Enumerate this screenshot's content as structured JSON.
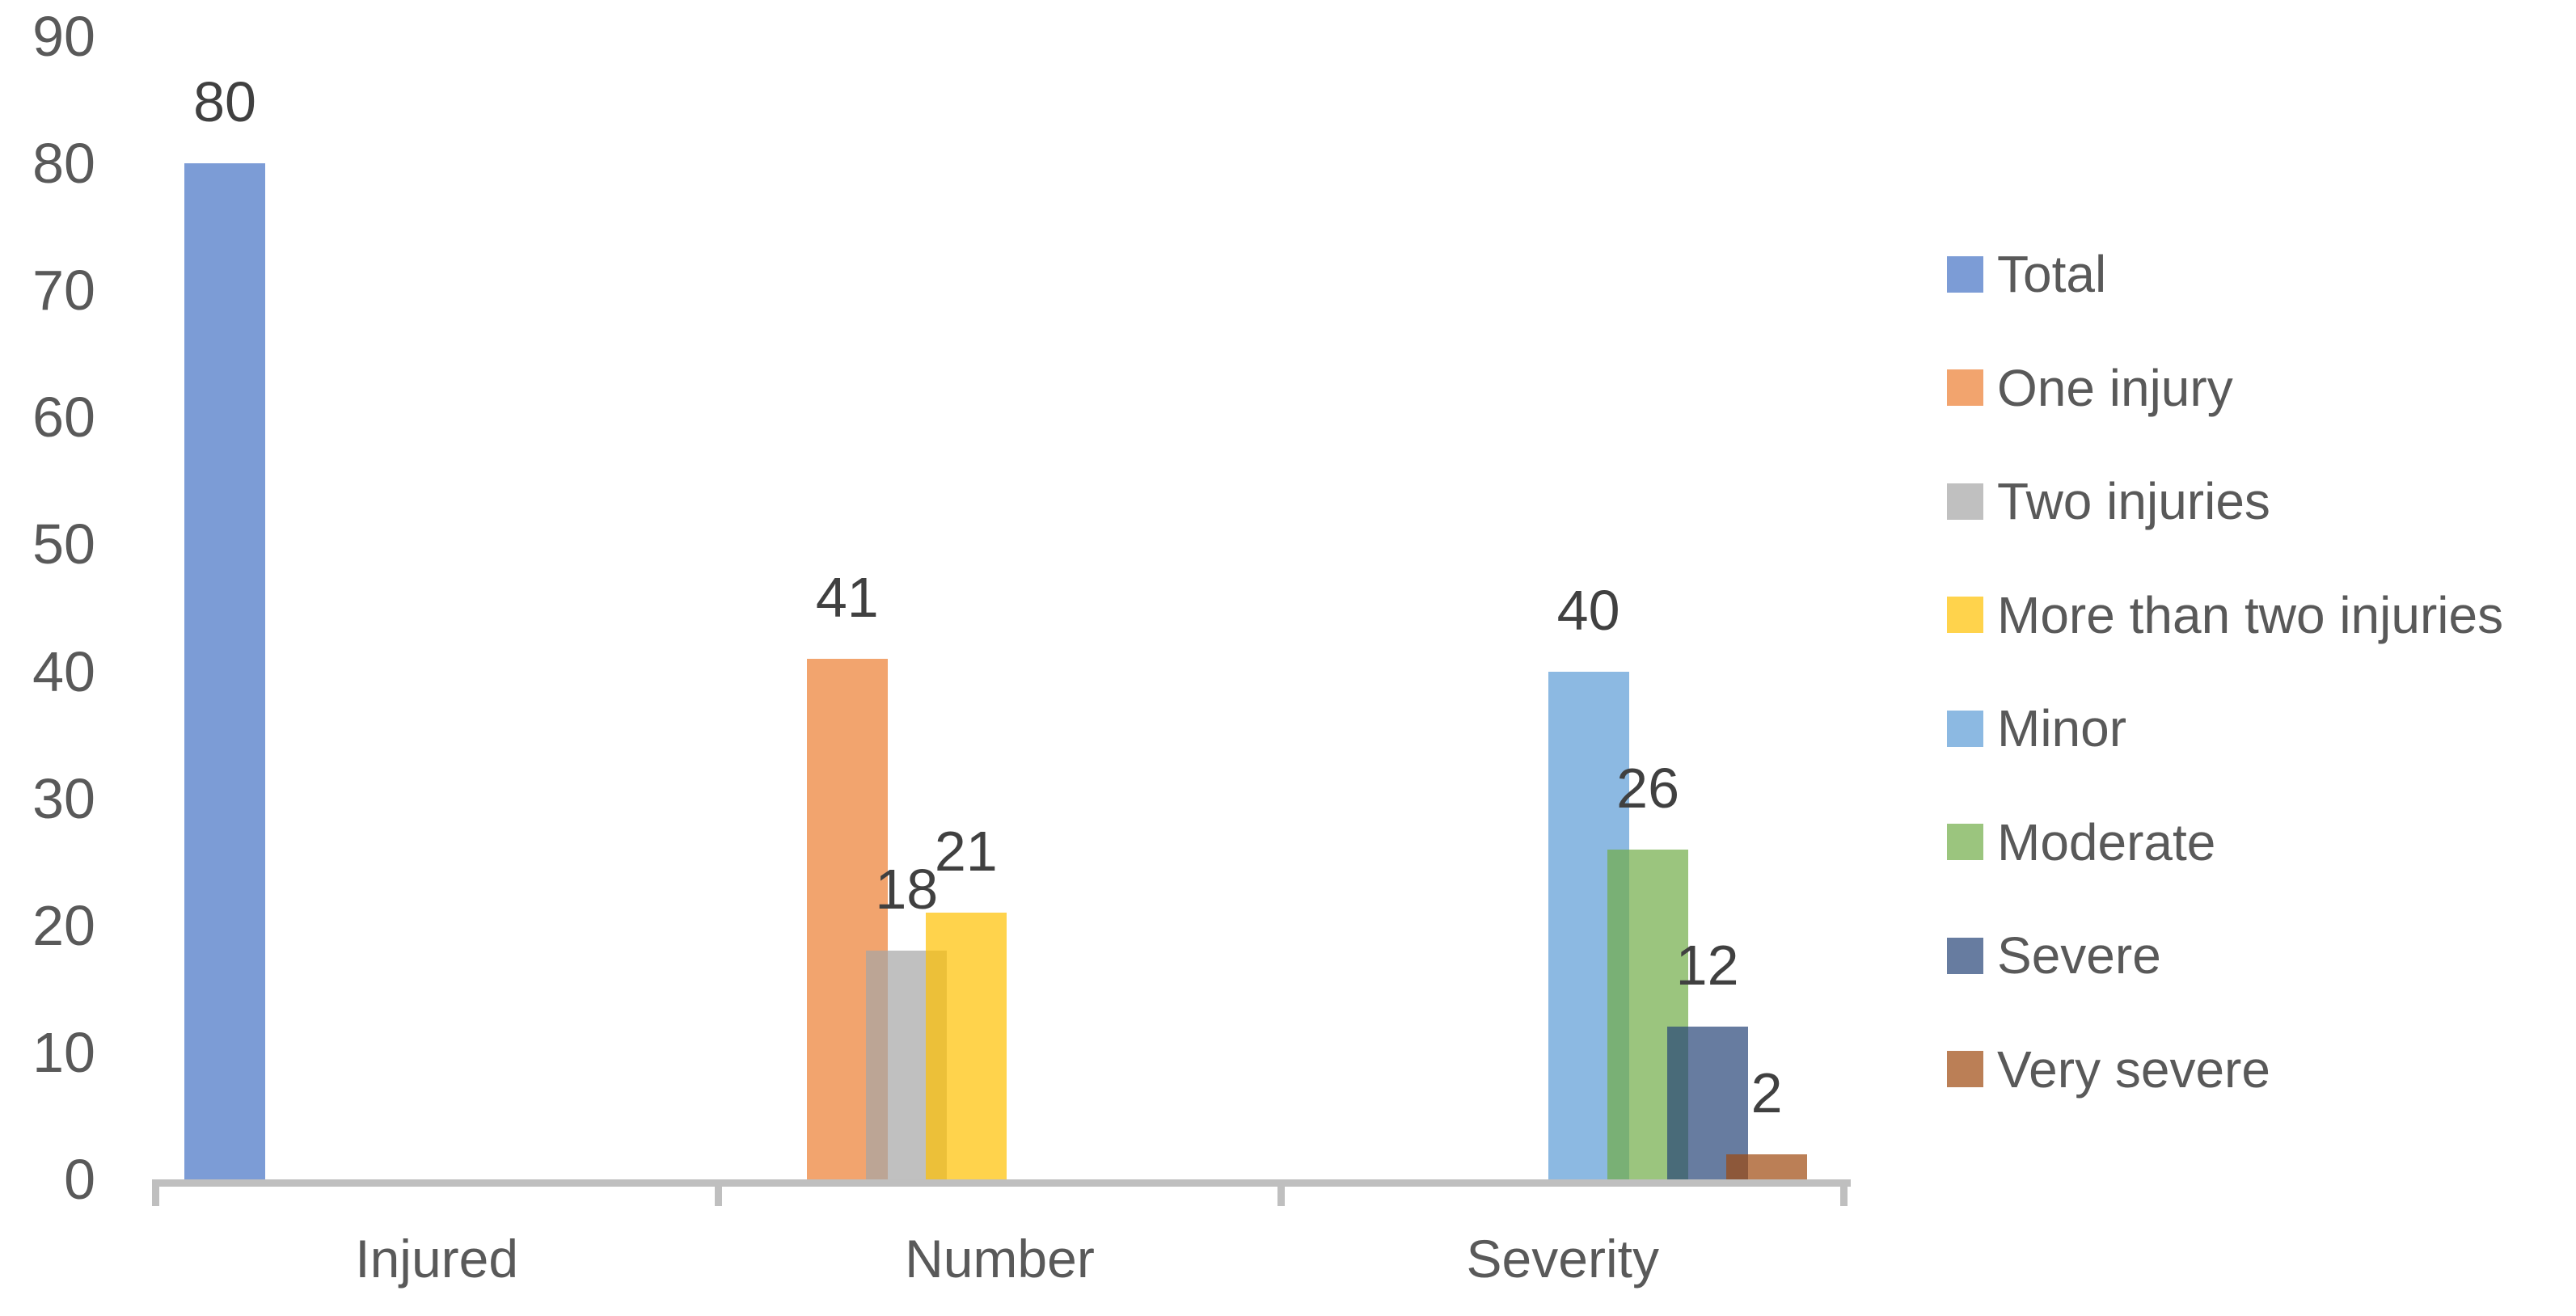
{
  "chart_data": {
    "type": "bar",
    "title": "",
    "categories": [
      "Injured",
      "Number",
      "Severity"
    ],
    "series": [
      {
        "name": "Total",
        "color": "#4472C4",
        "values": [
          80,
          null,
          null
        ]
      },
      {
        "name": "One injury",
        "color": "#ED7D31",
        "values": [
          null,
          41,
          null
        ]
      },
      {
        "name": "Two injuries",
        "color": "#A5A5A5",
        "values": [
          null,
          18,
          null
        ]
      },
      {
        "name": "More than two injuries",
        "color": "#FFC000",
        "values": [
          null,
          21,
          null
        ]
      },
      {
        "name": "Minor",
        "color": "#5B9BD5",
        "values": [
          null,
          null,
          40
        ]
      },
      {
        "name": "Moderate",
        "color": "#70AD47",
        "values": [
          null,
          null,
          26
        ]
      },
      {
        "name": "Severe",
        "color": "#264478",
        "values": [
          null,
          null,
          12
        ]
      },
      {
        "name": "Very severe",
        "color": "#9E480E",
        "values": [
          null,
          null,
          2
        ]
      }
    ],
    "y_axis": {
      "min": 0,
      "max": 90,
      "step": 10,
      "tick_labels": [
        "90",
        "80",
        "70",
        "60",
        "50",
        "40",
        "30",
        "20",
        "10",
        "0"
      ]
    },
    "legend": {
      "position": "right"
    },
    "bar_fill_opacity": 0.7,
    "grid": "off",
    "colors": {
      "axis_line": "#BFBFBF",
      "axis_text": "#595959",
      "data_label_text": "#404040",
      "background": "#FFFFFF"
    }
  }
}
